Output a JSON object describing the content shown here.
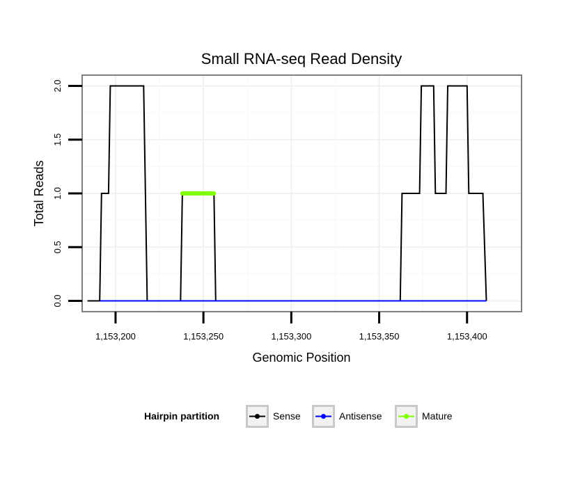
{
  "chart_data": {
    "type": "line",
    "title": "Small RNA-seq Read Density",
    "xlabel": "Genomic Position",
    "ylabel": "Total Reads",
    "xlim": [
      1153181,
      1153431
    ],
    "ylim": [
      -0.1,
      2.1
    ],
    "x_ticks": [
      1153200,
      1153250,
      1153300,
      1153350,
      1153400
    ],
    "x_tick_labels": [
      "1,153,200",
      "1,153,250",
      "1,153,300",
      "1,153,350",
      "1,153,400"
    ],
    "y_ticks": [
      0,
      0.5,
      1,
      1.5,
      2
    ],
    "y_tick_labels": [
      "0.0",
      "0.5",
      "1.0",
      "1.5",
      "2.0"
    ],
    "grid": true,
    "legend": {
      "title": "Hairpin partition",
      "position": "bottom",
      "entries": [
        "Sense",
        "Antisense",
        "Mature"
      ]
    },
    "series": [
      {
        "name": "Sense",
        "color": "#000000",
        "x": [
          1153184,
          1153191,
          1153192,
          1153196,
          1153197,
          1153216,
          1153218,
          1153237,
          1153238,
          1153256,
          1153257,
          1153362,
          1153363,
          1153373,
          1153374,
          1153381,
          1153382,
          1153388,
          1153389,
          1153400,
          1153401,
          1153409,
          1153411
        ],
        "values": [
          0,
          0,
          1,
          1,
          2,
          2,
          0,
          0,
          1,
          1,
          0,
          0,
          1,
          1,
          2,
          2,
          1,
          1,
          2,
          2,
          1,
          1,
          0
        ]
      },
      {
        "name": "Antisense",
        "color": "#0000ff",
        "x": [
          1153191,
          1153218,
          1153238,
          1153256,
          1153363,
          1153411
        ],
        "values": [
          0,
          0,
          0,
          0,
          0,
          0
        ]
      },
      {
        "name": "Mature",
        "color": "#7fff00",
        "x": [
          1153238,
          1153256
        ],
        "values": [
          1,
          1
        ]
      }
    ]
  }
}
